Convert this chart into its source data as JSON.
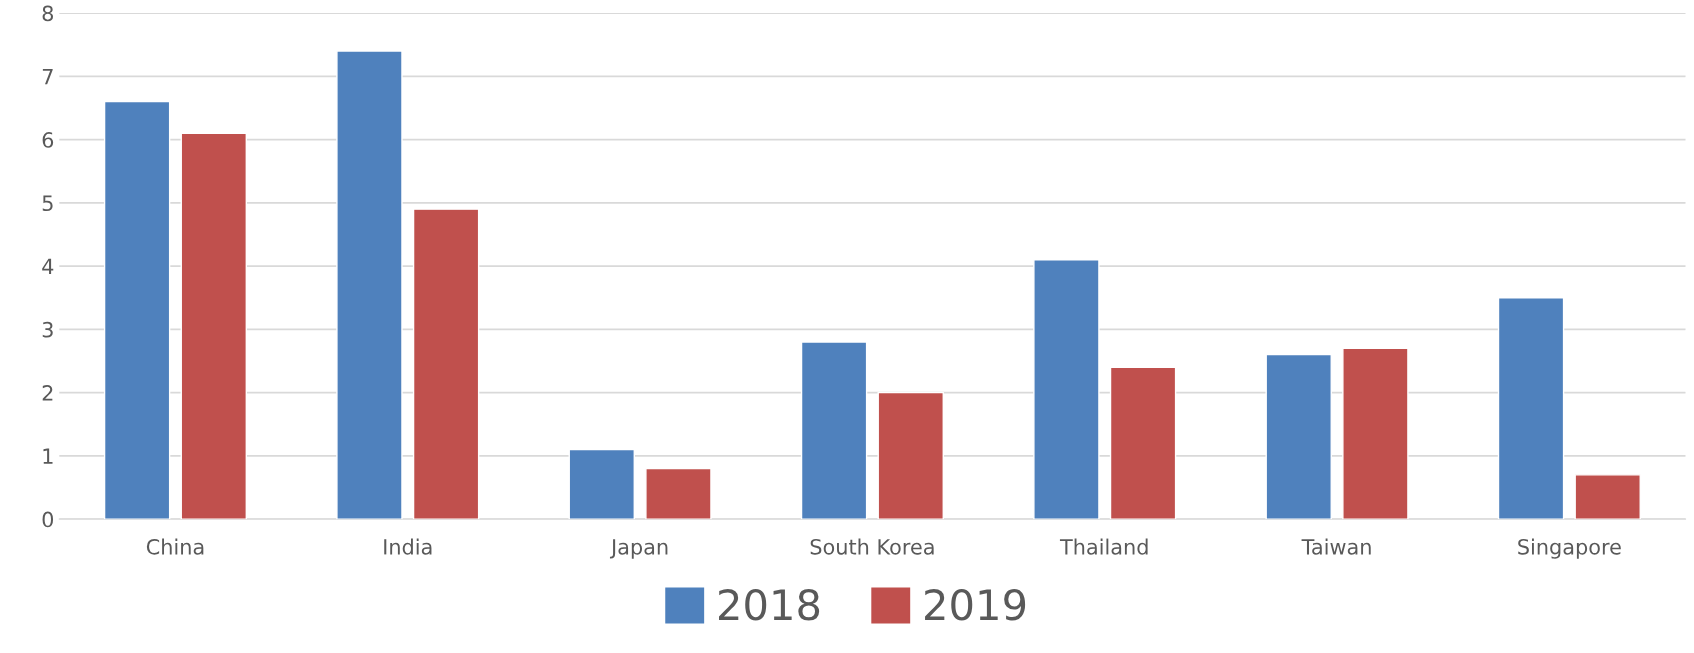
{
  "chart_data": {
    "type": "bar",
    "categories": [
      "China",
      "India",
      "Japan",
      "South Korea",
      "Thailand",
      "Taiwan",
      "Singapore"
    ],
    "series": [
      {
        "name": "2018",
        "color": "#4f81bd",
        "values": [
          6.6,
          7.4,
          1.1,
          2.8,
          4.1,
          2.6,
          3.5
        ]
      },
      {
        "name": "2019",
        "color": "#c0504d",
        "values": [
          6.1,
          4.9,
          0.8,
          2.0,
          2.4,
          2.7,
          0.7
        ]
      }
    ],
    "ylim": [
      0,
      8
    ],
    "yticks": [
      0,
      1,
      2,
      3,
      4,
      5,
      6,
      7,
      8
    ],
    "grid": "y",
    "legend": "bottom"
  }
}
